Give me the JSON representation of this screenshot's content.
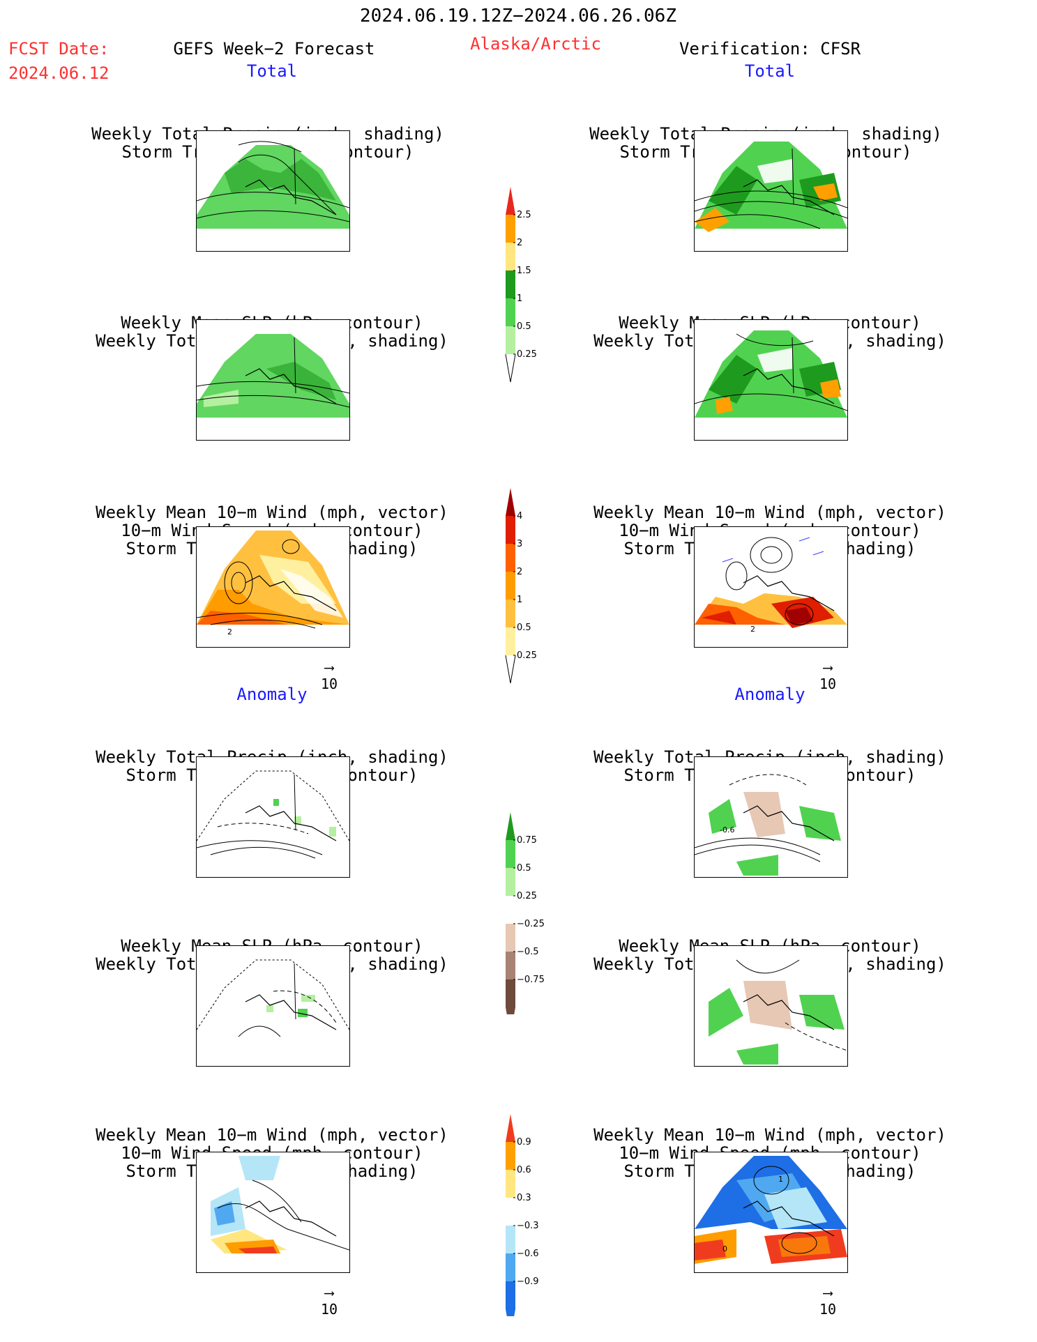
{
  "header": {
    "valid_period": "2024.06.19.12Z−2024.06.26.06Z",
    "fcst_label": "FCST Date:",
    "fcst_date": "2024.06.12",
    "model_title": "GEFS Week−2 Forecast",
    "region": "Alaska/Arctic",
    "verification": "Verification: CFSR"
  },
  "sections": {
    "total": "Total",
    "anomaly": "Anomaly"
  },
  "titles": {
    "precip_storm": [
      "Weekly Total Precip (inch, shading)",
      "Storm Track Density (contour)"
    ],
    "slp_precip": [
      "Weekly Mean SLP (hPa, contour)",
      "Weekly Total Precip (inch, shading)"
    ],
    "wind_storm": [
      "Weekly Mean 10−m Wind (mph, vector)",
      "10−m Wind Speed (mph, contour)",
      "Storm Track Density (shading)"
    ]
  },
  "vector_ref": {
    "arrow": "⟶",
    "value": "10"
  },
  "colorbars": {
    "precip_total": {
      "labels": [
        "2.5",
        "2",
        "1.5",
        "1",
        "0.5",
        "0.25"
      ],
      "colors": [
        "#e8281e",
        "#ffa000",
        "#ffe680",
        "#1e9b1e",
        "#50d250",
        "#b4f0a0"
      ]
    },
    "storm_total": {
      "labels": [
        "4",
        "3",
        "2",
        "1",
        "0.5",
        "0.25"
      ],
      "colors": [
        "#a00000",
        "#e01e00",
        "#ff6000",
        "#ff9c00",
        "#ffc040",
        "#fff0a0"
      ]
    },
    "precip_anom": {
      "labels": [
        "0.75",
        "0.5",
        "0.25",
        "−0.25",
        "−0.5",
        "−0.75"
      ],
      "colors": [
        "#1e9b1e",
        "#50d250",
        "#b4f0a0",
        "#ffffff",
        "#e6c8b4",
        "#a88272",
        "#6e4a3c"
      ]
    },
    "storm_anom": {
      "labels": [
        "0.9",
        "0.6",
        "0.3",
        "−0.3",
        "−0.6",
        "−0.9"
      ],
      "colors": [
        "#f03c1e",
        "#ffa000",
        "#ffe680",
        "#ffffff",
        "#b4e6f8",
        "#50a8f0",
        "#1e6ee6"
      ]
    }
  },
  "panel_labels": {
    "l3_contour": "2",
    "r3_contour": "2",
    "r4_contour": "-0.6",
    "r6_contour_top": "1",
    "r6_contour_bottom": "0"
  },
  "legend_colors": {
    "green_light": "#b4f0a0",
    "green_mid": "#50d250",
    "green_dark": "#1e9b1e",
    "yellow": "#ffe680",
    "orange": "#ffa000",
    "red": "#e8281e",
    "brown_light": "#e6c8b4",
    "blue_light": "#b4e6f8",
    "blue_mid": "#50a8f0",
    "blue_dark": "#1e6ee6",
    "vector_color": "#3c3cff"
  }
}
